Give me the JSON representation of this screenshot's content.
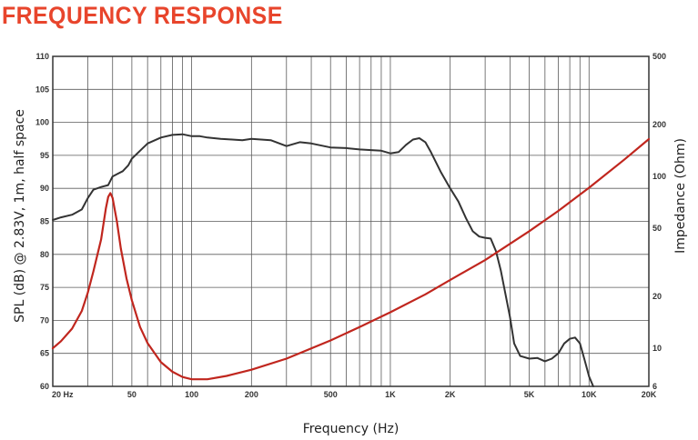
{
  "title": "FREQUENCY RESPONSE",
  "colors": {
    "title": "#e8452c",
    "spl": "#333333",
    "impedance": "#c0261e",
    "grid": "#5a5a5a"
  },
  "chart_data": {
    "type": "line",
    "title": "FREQUENCY RESPONSE",
    "xlabel": "Frequency (Hz)",
    "ylabel": "SPL (dB) @ 2.83V, 1m, half space",
    "y2label": "Impedance (Ohm)",
    "x_scale": "log",
    "xlim": [
      20,
      20000
    ],
    "ylim": [
      60,
      110
    ],
    "y2_scale": "log",
    "y2lim": [
      6,
      500
    ],
    "grid": true,
    "x_tick_labels": [
      {
        "value": 20,
        "label": "20  Hz"
      },
      {
        "value": 50,
        "label": "50"
      },
      {
        "value": 100,
        "label": "100"
      },
      {
        "value": 200,
        "label": "200"
      },
      {
        "value": 500,
        "label": "500"
      },
      {
        "value": 1000,
        "label": "1K"
      },
      {
        "value": 2000,
        "label": "2K"
      },
      {
        "value": 5000,
        "label": "5K"
      },
      {
        "value": 10000,
        "label": "10K"
      },
      {
        "value": 20000,
        "label": "20K"
      }
    ],
    "y_tick_labels": [
      {
        "value": 110,
        "label": "110"
      },
      {
        "value": 105,
        "label": "105"
      },
      {
        "value": 100,
        "label": "100"
      },
      {
        "value": 95,
        "label": "95"
      },
      {
        "value": 90,
        "label": "90"
      },
      {
        "value": 85,
        "label": "85"
      },
      {
        "value": 80,
        "label": "80"
      },
      {
        "value": 75,
        "label": "75"
      },
      {
        "value": 70,
        "label": "70"
      },
      {
        "value": 65,
        "label": "65"
      },
      {
        "value": 60,
        "label": "60"
      }
    ],
    "y2_tick_labels": [
      {
        "value": 500,
        "label": "500"
      },
      {
        "value": 200,
        "label": "200"
      },
      {
        "value": 100,
        "label": "100"
      },
      {
        "value": 50,
        "label": "50"
      },
      {
        "value": 20,
        "label": "20"
      },
      {
        "value": 10,
        "label": "10"
      },
      {
        "value": 6,
        "label": "6"
      }
    ],
    "series": [
      {
        "axis": "left",
        "color": "#333333",
        "x": [
          20,
          22,
          25,
          28,
          30,
          32,
          35,
          38,
          40,
          43,
          45,
          48,
          50,
          55,
          60,
          70,
          80,
          90,
          100,
          110,
          120,
          140,
          160,
          180,
          200,
          250,
          300,
          350,
          400,
          500,
          600,
          700,
          800,
          900,
          1000,
          1100,
          1200,
          1300,
          1400,
          1500,
          1600,
          1800,
          2000,
          2200,
          2400,
          2600,
          2800,
          3000,
          3200,
          3400,
          3600,
          4000,
          4200,
          4500,
          5000,
          5500,
          6000,
          6500,
          7000,
          7500,
          8000,
          8500,
          9000,
          9500,
          10000,
          10500
        ],
        "y": [
          85.2,
          85.6,
          86.0,
          86.8,
          88.5,
          89.8,
          90.2,
          90.5,
          91.8,
          92.3,
          92.6,
          93.5,
          94.5,
          95.7,
          96.8,
          97.7,
          98.1,
          98.2,
          97.9,
          97.9,
          97.7,
          97.5,
          97.4,
          97.3,
          97.5,
          97.3,
          96.4,
          97.0,
          96.8,
          96.2,
          96.1,
          95.9,
          95.8,
          95.7,
          95.3,
          95.5,
          96.6,
          97.4,
          97.6,
          97.0,
          95.5,
          92.4,
          90.0,
          88.0,
          85.5,
          83.5,
          82.7,
          82.5,
          82.4,
          80.5,
          77.5,
          70.5,
          66.5,
          64.6,
          64.2,
          64.3,
          63.8,
          64.2,
          65.0,
          66.5,
          67.2,
          67.4,
          66.5,
          64.0,
          61.5,
          60.0
        ]
      },
      {
        "axis": "right",
        "color": "#c0261e",
        "x": [
          20,
          22,
          25,
          28,
          30,
          32,
          35,
          37,
          38,
          39,
          40,
          42,
          44,
          47,
          50,
          55,
          60,
          70,
          80,
          90,
          100,
          120,
          150,
          200,
          300,
          500,
          700,
          1000,
          1500,
          2000,
          3000,
          5000,
          7000,
          10000,
          15000,
          20000
        ],
        "y": [
          10.0,
          11.0,
          13.0,
          16.5,
          21.0,
          28.0,
          43.0,
          65.0,
          76.0,
          80.0,
          75.0,
          55.0,
          38.0,
          25.5,
          19.0,
          13.3,
          10.7,
          8.3,
          7.3,
          6.8,
          6.6,
          6.6,
          6.9,
          7.5,
          8.7,
          11.1,
          13.3,
          16.2,
          20.6,
          25.0,
          32.6,
          48.0,
          63.0,
          86.0,
          125.0,
          165.0
        ]
      }
    ]
  }
}
